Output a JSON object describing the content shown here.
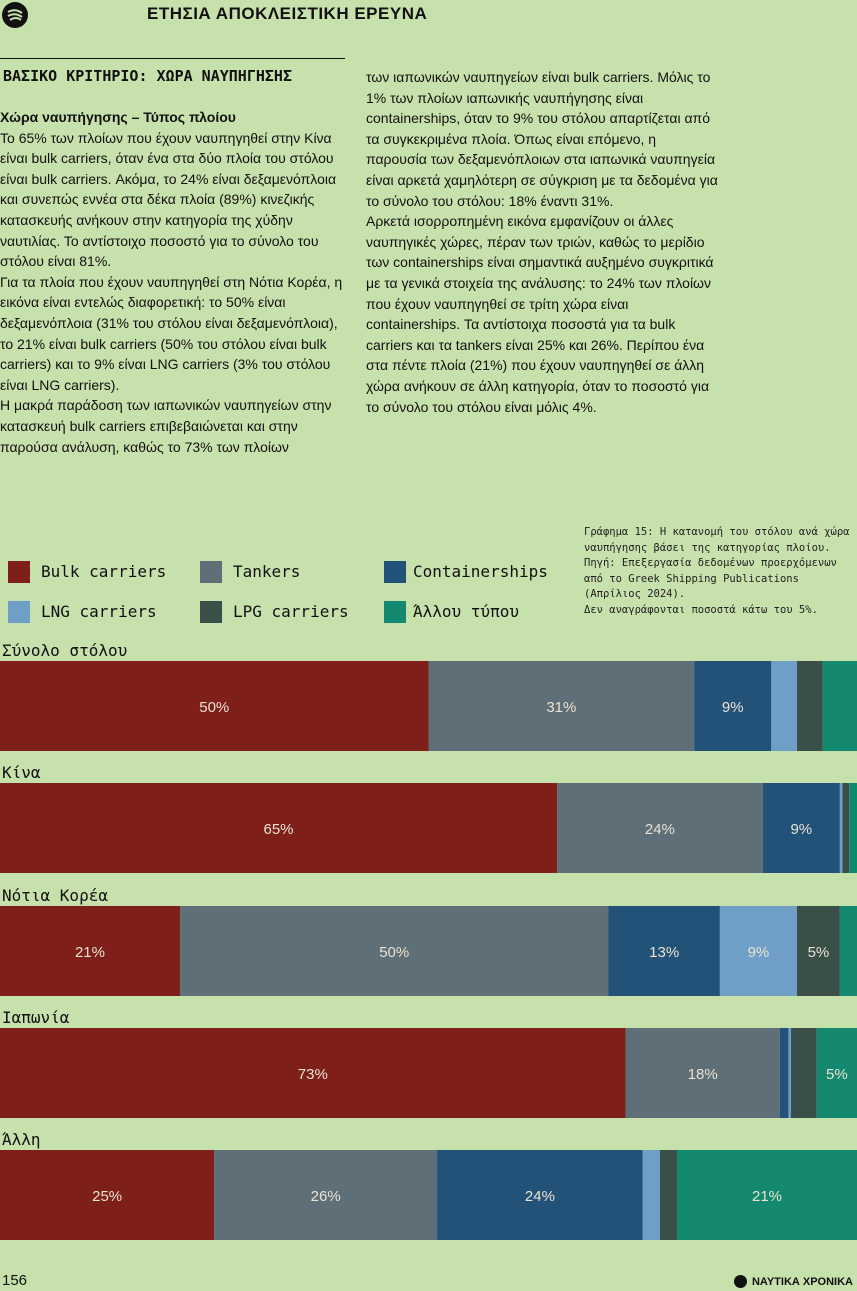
{
  "header": {
    "title": "ΕΤΗΣΙΑ ΑΠΟΚΛΕΙΣΤΙΚΗ ΕΡΕΥΝΑ",
    "logo_icon": "wave-logo-icon"
  },
  "section_title": "ΒΑΣΙΚΟ ΚΡΙΤΗΡΙΟ: ΧΩΡΑ ΝΑΥΠΗΓΗΣΗΣ",
  "article": {
    "subheading": "Χώρα ναυπήγησης – Τύπος πλοίου",
    "left_paragraphs": [
      "Το 65% των πλοίων που έχουν ναυπηγηθεί στην Κίνα είναι bulk carriers, όταν ένα στα δύο πλοία του στόλου είναι bulk carriers. Ακόμα, το 24% είναι δεξαμενόπλοια και συνεπώς εννέα στα δέκα πλοία (89%) κινεζικής κατασκευής ανήκουν στην κατηγορία της χύδην ναυτιλίας. Το αντίστοιχο ποσοστό για το σύνολο του στόλου είναι 81%.",
      "Για τα πλοία που έχουν ναυπηγηθεί στη Νότια Κορέα, η εικόνα είναι εντελώς διαφορετική: το 50% είναι δεξαμενόπλοια (31% του στόλου είναι δεξαμενόπλοια), το 21% είναι bulk carriers (50% του στόλου είναι bulk carriers) και το 9% είναι LNG carriers (3% του στόλου είναι LNG carriers).",
      "Η μακρά παράδοση των ιαπωνικών ναυπηγείων στην κατασκευή bulk carriers επιβεβαιώνεται και στην παρούσα ανάλυση, καθώς το 73% των πλοίων"
    ],
    "right_paragraphs": [
      "των ιαπωνικών ναυπηγείων είναι bulk carriers. Μόλις το 1% των πλοίων ιαπωνικής ναυπήγησης είναι containerships, όταν το 9% του στόλου απαρτίζεται από τα συγκεκριμένα πλοία. Όπως είναι επόμενο, η παρουσία των δεξαμενόπλοιων στα ιαπωνικά ναυπηγεία είναι αρκετά χαμηλότερη σε σύγκριση με τα δεδομένα για το σύνολο του στόλου: 18% έναντι 31%.",
      "Αρκετά ισορροπημένη εικόνα εμφανίζουν οι άλλες ναυπηγικές χώρες, πέραν των τριών, καθώς το μερίδιο των containerships είναι σημαντικά αυξημένο συγκριτικά με τα γενικά στοιχεία της ανάλυσης: το 24% των πλοίων που έχουν ναυπηγηθεί σε τρίτη χώρα είναι containerships. Τα αντίστοιχα ποσοστά για τα bulk carriers και τα tankers είναι 25% και 26%. Περίπου ένα στα πέντε πλοία (21%) που έχουν ναυπηγηθεί σε άλλη χώρα ανήκουν σε άλλη κατηγορία, όταν το ποσοστό για το σύνολο του στόλου είναι μόλις 4%."
    ]
  },
  "caption": [
    "Γράφημα 15: Η κατανομή του στόλου ανά χώρα ναυπήγησης βάσει της κατηγορίας πλοίου.",
    "Πηγή: Επεξεργασία δεδομένων προερχόμενων από το Greek Shipping Publications (Απρίλιος 2024).",
    "Δεν αναγράφονται ποσοστά κάτω του 5%."
  ],
  "colors": {
    "Bulk carriers": "#7e1f1a",
    "Tankers": "#5f6f77",
    "Containerships": "#235279",
    "LNG carriers": "#6f9fc6",
    "LPG carriers": "#3a4f48",
    "Άλλου τύπου": "#14896f",
    "label_light": "#e9e3d3",
    "label_dark": "#1f2d2a"
  },
  "chart_data": {
    "type": "bar",
    "orientation": "horizontal",
    "stacked": true,
    "normalized_percent": true,
    "legend_position": "top-left",
    "label_threshold_percent": 5,
    "series_names": [
      "Bulk carriers",
      "Tankers",
      "Containerships",
      "LNG carriers",
      "LPG carriers",
      "Άλλου τύπου"
    ],
    "categories": [
      "Σύνολο στόλου",
      "Κίνα",
      "Νότια Κορέα",
      "Ιαπωνία",
      "Άλλη"
    ],
    "values": [
      [
        50,
        31,
        9,
        3,
        3,
        4
      ],
      [
        65,
        24,
        9,
        0.3,
        0.8,
        0.9
      ],
      [
        21,
        50,
        13,
        9,
        5,
        2
      ],
      [
        73,
        18,
        1,
        0.3,
        3,
        4.7
      ],
      [
        25,
        26,
        24,
        2,
        2,
        21
      ]
    ],
    "labels": [
      [
        "50%",
        "31%",
        "9%",
        "",
        "",
        ""
      ],
      [
        "65%",
        "24%",
        "9%",
        "",
        "",
        ""
      ],
      [
        "21%",
        "50%",
        "13%",
        "9%",
        "5%",
        ""
      ],
      [
        "73%",
        "18%",
        "",
        "",
        "",
        "5%"
      ],
      [
        "25%",
        "26%",
        "24%",
        "",
        "",
        "21%"
      ]
    ]
  },
  "footer": {
    "page_number": "156",
    "brand": "ΝΑΥΤΙΚΑ ΧΡΟΝΙΚΑ"
  }
}
